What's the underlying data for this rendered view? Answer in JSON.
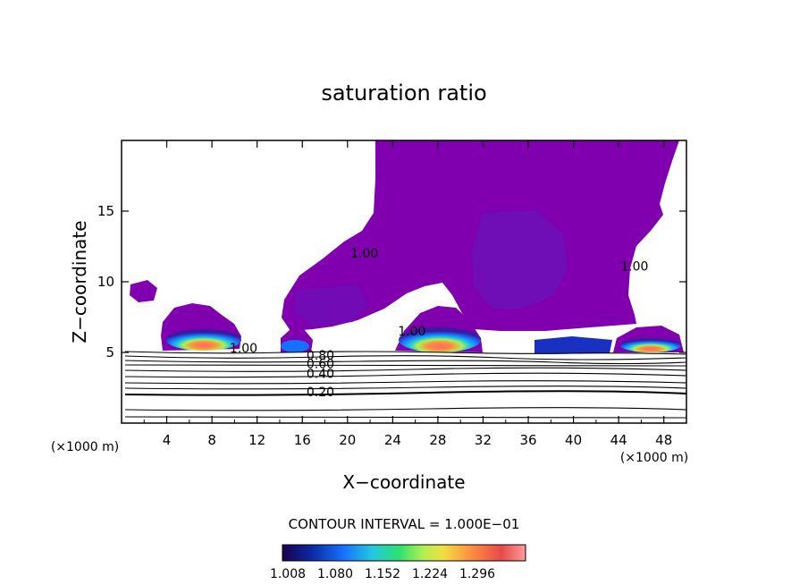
{
  "chart_data": {
    "type": "heatmap",
    "title": "saturation ratio",
    "xlabel": "X−coordinate",
    "ylabel": "Z−coordinate",
    "x_unit_left": "(×1000 m)",
    "x_unit_right": "(×1000 m)",
    "xlim": [
      0,
      50
    ],
    "ylim": [
      0,
      20
    ],
    "x_ticks": [
      4,
      8,
      12,
      16,
      20,
      24,
      28,
      32,
      36,
      40,
      44,
      48
    ],
    "y_ticks": [
      5,
      10,
      15
    ],
    "contour_interval_text": "CONTOUR INTERVAL = 1.000E−01",
    "contour_labels": [
      {
        "text": "1.00",
        "x": 21.5,
        "y": 11.7
      },
      {
        "text": "1.00",
        "x": 45.4,
        "y": 10.8
      },
      {
        "text": "1.00",
        "x": 10.8,
        "y": 5.0
      },
      {
        "text": "1.00",
        "x": 25.7,
        "y": 6.2
      },
      {
        "text": "0.80",
        "x": 17.6,
        "y": 4.5
      },
      {
        "text": "0.60",
        "x": 17.6,
        "y": 3.9
      },
      {
        "text": "0.40",
        "x": 17.6,
        "y": 3.2
      },
      {
        "text": "0.20",
        "x": 17.6,
        "y": 1.9
      }
    ],
    "colorbar": {
      "tick_labels": [
        "1.008",
        "1.080",
        "1.152",
        "1.224",
        "1.296"
      ],
      "colors": [
        "#1a0050",
        "#0a2aa0",
        "#1670ff",
        "#22c8e0",
        "#2ee070",
        "#b0f050",
        "#f0e040",
        "#ff8c40",
        "#e84a4a",
        "#ff9a9a"
      ]
    },
    "colors": {
      "supersaturated": "#8000b0",
      "saturated_core": "#6e12b8",
      "axes": "#000000"
    }
  }
}
